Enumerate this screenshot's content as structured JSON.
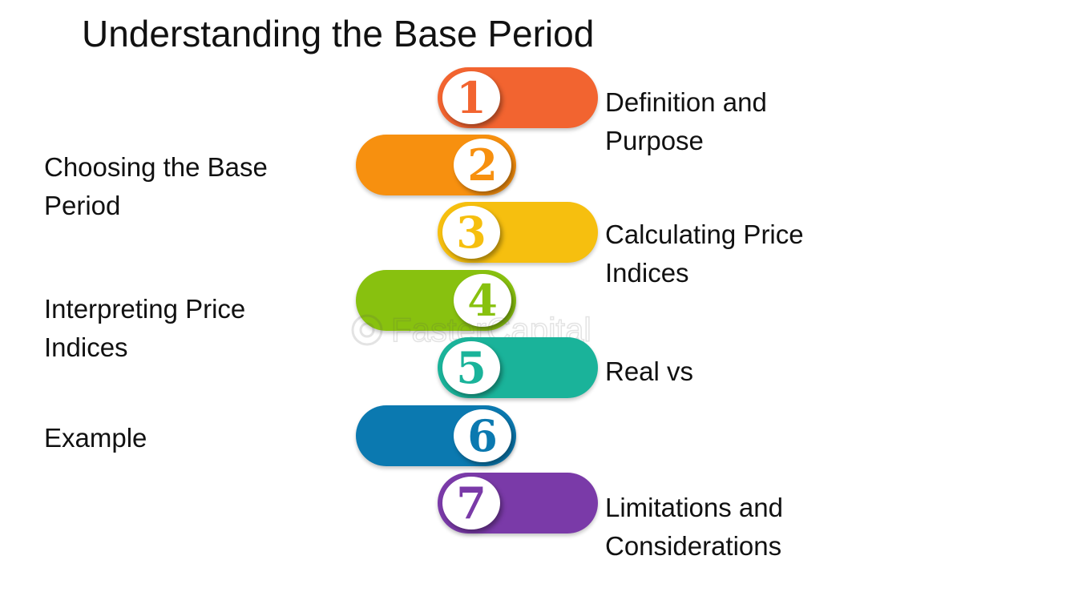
{
  "title": "Understanding the Base Period",
  "watermark": "FasterCapital",
  "steps": [
    {
      "number": "1",
      "label_line1": "Definition and",
      "label_line2": "Purpose",
      "side": "right",
      "color": "#f26430"
    },
    {
      "number": "2",
      "label_line1": "Choosing the Base",
      "label_line2": "Period",
      "side": "left",
      "color": "#f7900f"
    },
    {
      "number": "3",
      "label_line1": "Calculating Price",
      "label_line2": "Indices",
      "side": "right",
      "color": "#f6bf0f"
    },
    {
      "number": "4",
      "label_line1": "Interpreting Price",
      "label_line2": "Indices",
      "side": "left",
      "color": "#88c10f"
    },
    {
      "number": "5",
      "label_line1": "Real vs",
      "label_line2": "",
      "side": "right",
      "color": "#1ab39a"
    },
    {
      "number": "6",
      "label_line1": "Example",
      "label_line2": "",
      "side": "left",
      "color": "#0b79b0"
    },
    {
      "number": "7",
      "label_line1": "Limitations and",
      "label_line2": "Considerations",
      "side": "right",
      "color": "#7a3aa8"
    }
  ]
}
